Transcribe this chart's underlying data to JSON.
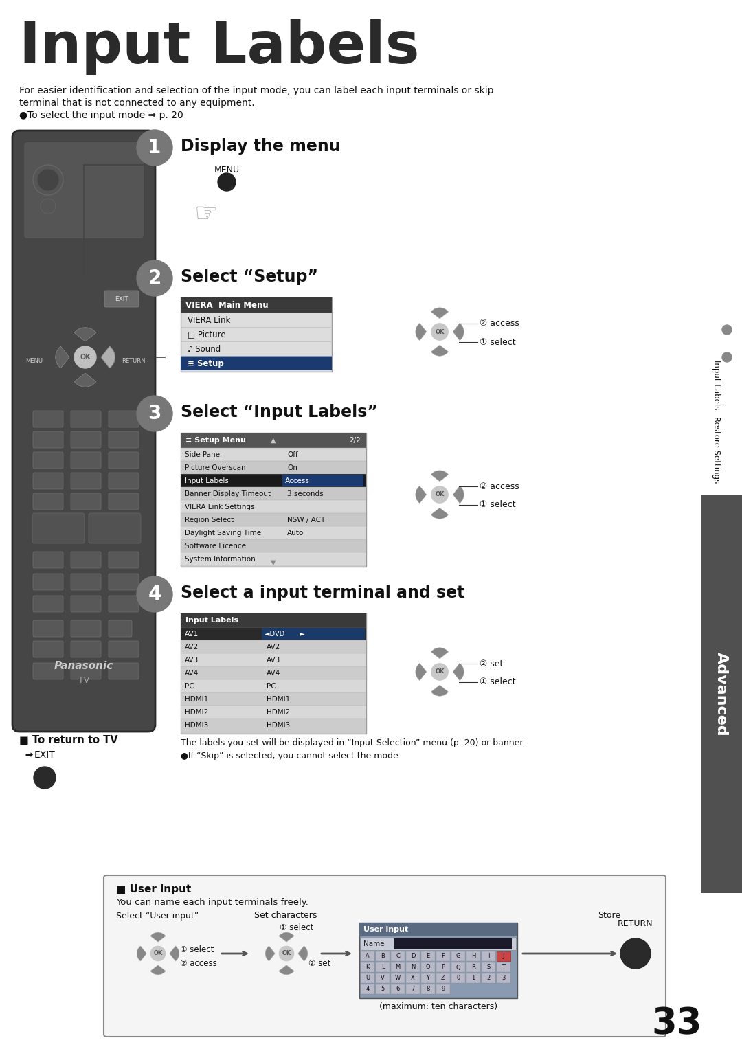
{
  "title": "Input Labels",
  "page_number": "33",
  "background_color": "#ffffff",
  "intro_line1": "For easier identification and selection of the input mode, you can label each input terminals or skip",
  "intro_line2": "terminal that is not connected to any equipment.",
  "intro_line3": "●To select the input mode ⇒ p. 20",
  "step1_title": "Display the menu",
  "step1_label": "MENU",
  "step2_title": "Select “Setup”",
  "step3_title": "Select “Input Labels”",
  "step4_title": "Select a input terminal and set",
  "return_text": "■ To return to TV",
  "return_sub": "EXIT",
  "sidebar_bottom_text": "Advanced",
  "main_menu_title": "VIERA  Main Menu",
  "main_menu_items": [
    "VIERA Link",
    "□ Picture",
    "♪ Sound",
    "≡ Setup"
  ],
  "main_menu_selected": 3,
  "setup_menu_title": "≡ Setup Menu",
  "setup_menu_page": "2/2",
  "setup_menu_items": [
    [
      "Side Panel",
      "Off"
    ],
    [
      "Picture Overscan",
      "On"
    ],
    [
      "Input Labels",
      "Access"
    ],
    [
      "Banner Display Timeout",
      "3 seconds"
    ],
    [
      "VIERA Link Settings",
      ""
    ],
    [
      "Region Select",
      "NSW / ACT"
    ],
    [
      "Daylight Saving Time",
      "Auto"
    ],
    [
      "Software Licence",
      ""
    ],
    [
      "System Information",
      ""
    ]
  ],
  "setup_menu_selected": 2,
  "input_labels_title": "Input Labels",
  "input_labels_items": [
    [
      "AV1",
      "◄DVD       ►"
    ],
    [
      "AV2",
      "AV2"
    ],
    [
      "AV3",
      "AV3"
    ],
    [
      "AV4",
      "AV4"
    ],
    [
      "PC",
      "PC"
    ],
    [
      "HDMI1",
      "HDMI1"
    ],
    [
      "HDMI2",
      "HDMI2"
    ],
    [
      "HDMI3",
      "HDMI3"
    ]
  ],
  "input_labels_selected": 0,
  "notes_text": "The labels you set will be displayed in “Input Selection” menu (p. 20) or banner.\n●If “Skip” is selected, you cannot select the mode.",
  "user_input_title": "■ User input",
  "user_input_text": "You can name each input terminals freely.",
  "user_input_col1": "Select “User input”",
  "user_input_col2": "Set characters",
  "user_input_col3": "Store",
  "user_input_return": "RETURN",
  "user_input_max": "(maximum: ten characters)",
  "circle_color": "#777777",
  "circle_text_color": "#ffffff",
  "remote_body_color": "#4a4a4a",
  "remote_dark_color": "#333333",
  "remote_btn_color": "#5a5a5a",
  "menu_bg": "#e8e8e8",
  "menu_header_bg": "#555555",
  "menu_selected_bg_dark": "#1a1a1a",
  "menu_row_light": "#e8e8e8",
  "menu_row_mid": "#d8d8d8",
  "table_header_bg": "#3a3a3a",
  "input_selected_bg": "#2a2a2a",
  "input_val_selected_bg": "#003080",
  "sidebar_top_bg": "#ffffff",
  "sidebar_bot_bg": "#505050",
  "dpad_dark": "#606060",
  "dpad_center": "#c0c0c0",
  "dpad_right_arrow": "#b0b0b0"
}
